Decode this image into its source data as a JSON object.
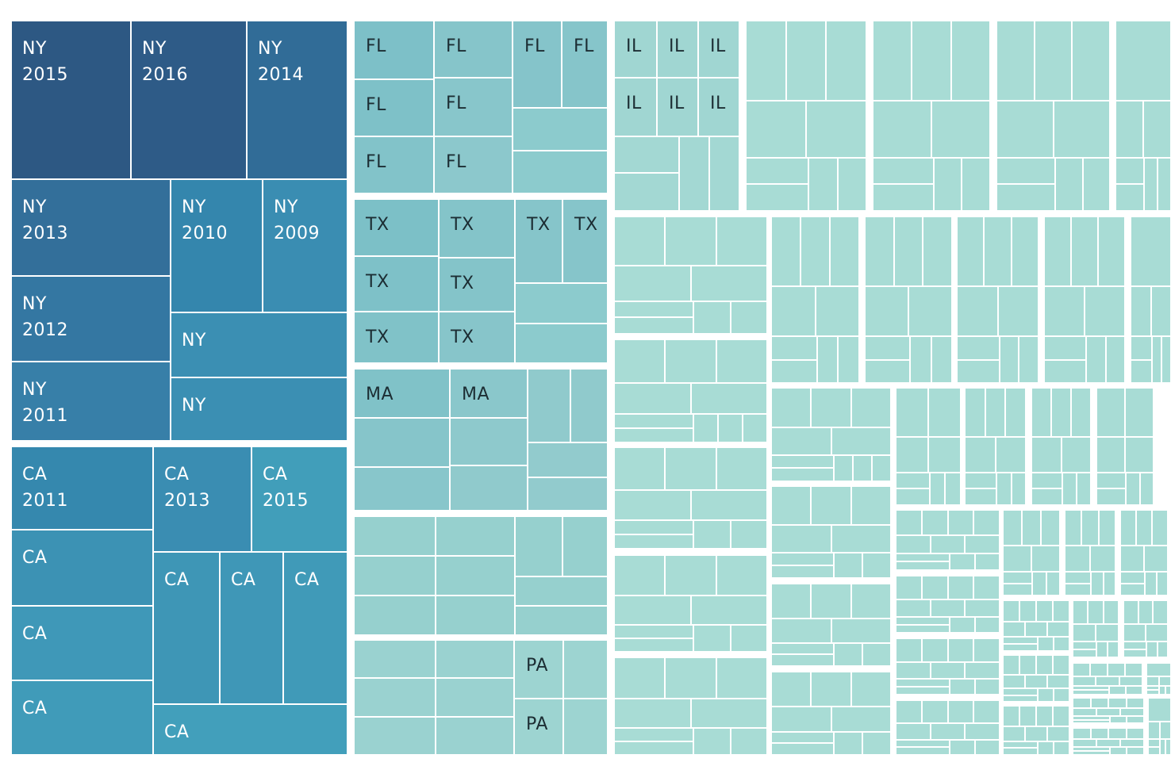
{
  "chart_data": {
    "type": "treemap",
    "title": "",
    "color_scale": {
      "dark": "#2d5a86",
      "mid": "#3a90b2",
      "light": "#a9dbd4"
    },
    "groups": [
      {
        "label": "NY",
        "tiles": [
          {
            "label": "NY",
            "sub": "2015",
            "color": "#2d5883",
            "weight": 3.3
          },
          {
            "label": "NY",
            "sub": "2016",
            "color": "#2e5b87",
            "weight": 3.2
          },
          {
            "label": "NY",
            "sub": "2014",
            "color": "#316c97",
            "weight": 2.8
          },
          {
            "label": "NY",
            "sub": "2013",
            "color": "#336f9a",
            "weight": 2.5
          },
          {
            "label": "NY",
            "sub": "2010",
            "color": "#3486ad",
            "weight": 2.0
          },
          {
            "label": "NY",
            "sub": "2009",
            "color": "#3a8db2",
            "weight": 1.8
          },
          {
            "label": "NY",
            "sub": "2012",
            "color": "#3477a2",
            "weight": 2.2
          },
          {
            "label": "NY",
            "sub": "2011",
            "color": "#377fa8",
            "weight": 2.0
          },
          {
            "label": "NY",
            "sub": "",
            "color": "#3b8fb3",
            "weight": 1.7
          },
          {
            "label": "NY",
            "sub": "",
            "color": "#3b8fb3",
            "weight": 1.7
          }
        ]
      },
      {
        "label": "CA",
        "tiles": [
          {
            "label": "CA",
            "sub": "2011",
            "color": "#3588ae",
            "weight": 1.9
          },
          {
            "label": "CA",
            "sub": "2013",
            "color": "#3a8db2",
            "weight": 1.8
          },
          {
            "label": "CA",
            "sub": "2015",
            "color": "#419eba",
            "weight": 1.7
          },
          {
            "label": "CA",
            "sub": "",
            "color": "#3c92b4",
            "weight": 1.7
          },
          {
            "label": "CA",
            "sub": "",
            "color": "#3e96b6",
            "weight": 1.7
          },
          {
            "label": "CA",
            "sub": "",
            "color": "#3f98b8",
            "weight": 1.7
          },
          {
            "label": "CA",
            "sub": "",
            "color": "#3f97b7",
            "weight": 1.6
          },
          {
            "label": "CA",
            "sub": "",
            "color": "#409ab8",
            "weight": 1.6
          },
          {
            "label": "CA",
            "sub": "",
            "color": "#429fbb",
            "weight": 1.5
          },
          {
            "label": "CA",
            "sub": "",
            "color": "#409bb9",
            "weight": 1.5
          }
        ]
      },
      {
        "label": "FL",
        "tiles": [
          {
            "label": "FL",
            "color": "#7dc0c8",
            "weight": 1.3
          },
          {
            "label": "FL",
            "color": "#86c5ca",
            "weight": 1.3
          },
          {
            "label": "FL",
            "color": "#85c4ca",
            "weight": 1.1
          },
          {
            "label": "FL",
            "color": "#86c5ca",
            "weight": 1.0
          },
          {
            "label": "FL",
            "color": "#7ec1c8",
            "weight": 1.3
          },
          {
            "label": "FL",
            "color": "#88c6cb",
            "weight": 1.3
          },
          {
            "label": "FL",
            "color": "#82c3c9",
            "weight": 1.2
          },
          {
            "label": "FL",
            "color": "#8cc8cc",
            "weight": 1.2
          }
        ]
      },
      {
        "label": "TX",
        "tiles": [
          {
            "label": "TX",
            "color": "#7cc0c7",
            "weight": 1.3
          },
          {
            "label": "TX",
            "color": "#84c4c9",
            "weight": 1.3
          },
          {
            "label": "TX",
            "color": "#86c5ca",
            "weight": 1.1
          },
          {
            "label": "TX",
            "color": "#86c5ca",
            "weight": 1.0
          },
          {
            "label": "TX",
            "color": "#7ec1c8",
            "weight": 1.2
          },
          {
            "label": "TX",
            "color": "#84c4c9",
            "weight": 1.2
          },
          {
            "label": "TX",
            "color": "#80c2c8",
            "weight": 1.2
          },
          {
            "label": "TX",
            "color": "#87c5ca",
            "weight": 1.2
          }
        ]
      },
      {
        "label": "MA",
        "tiles": [
          {
            "label": "MA",
            "color": "#80c2c8",
            "weight": 1.2
          },
          {
            "label": "MA",
            "color": "#8ac7cb",
            "weight": 1.2
          }
        ]
      },
      {
        "label": "IL",
        "tiles": [
          {
            "label": "IL",
            "color": "#a0d6d2"
          },
          {
            "label": "IL",
            "color": "#a0d6d2"
          },
          {
            "label": "IL",
            "color": "#a0d6d2"
          },
          {
            "label": "IL",
            "color": "#a0d6d2"
          },
          {
            "label": "IL",
            "color": "#a0d6d2"
          },
          {
            "label": "IL",
            "color": "#a0d6d2"
          }
        ]
      },
      {
        "label": "PA",
        "tiles": [
          {
            "label": "PA",
            "color": "#9dd4d1"
          },
          {
            "label": "PA",
            "color": "#9dd4d1"
          }
        ]
      }
    ],
    "unlabeled_tile_color": "#a8dcd5",
    "unlabeled_tile_color_alt": "#96d0ce"
  }
}
